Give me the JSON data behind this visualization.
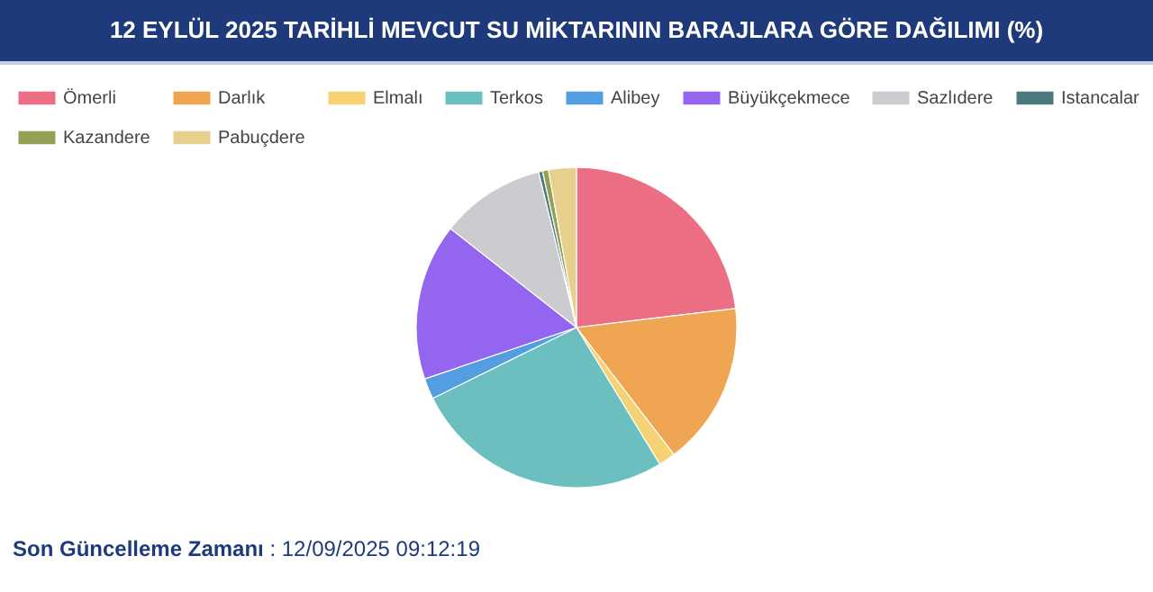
{
  "chart_data": {
    "type": "pie",
    "title": "12 EYLÜL 2025 TARİHLİ MEVCUT SU MİKTARININ BARAJLARA GÖRE DAĞILIMI (%)",
    "categories": [
      "Ömerli",
      "Darlık",
      "Elmalı",
      "Terkos",
      "Alibey",
      "Büyükçekmece",
      "Sazlıdere",
      "Istancalar",
      "Kazandere",
      "Pabuçdere"
    ],
    "values": [
      23.1,
      16.5,
      1.7,
      26.4,
      2.1,
      15.8,
      10.6,
      0.4,
      0.6,
      2.8
    ],
    "colors": [
      "#ec6e85",
      "#f0a552",
      "#f5d273",
      "#6cbfbf",
      "#529ee0",
      "#9466f0",
      "#cbcbd0",
      "#4b7a7e",
      "#95a055",
      "#e6d08c"
    ],
    "legend": "top",
    "annotations": [
      "Son Güncelleme Zamanı : 12/09/2025 09:12:19"
    ]
  }
}
